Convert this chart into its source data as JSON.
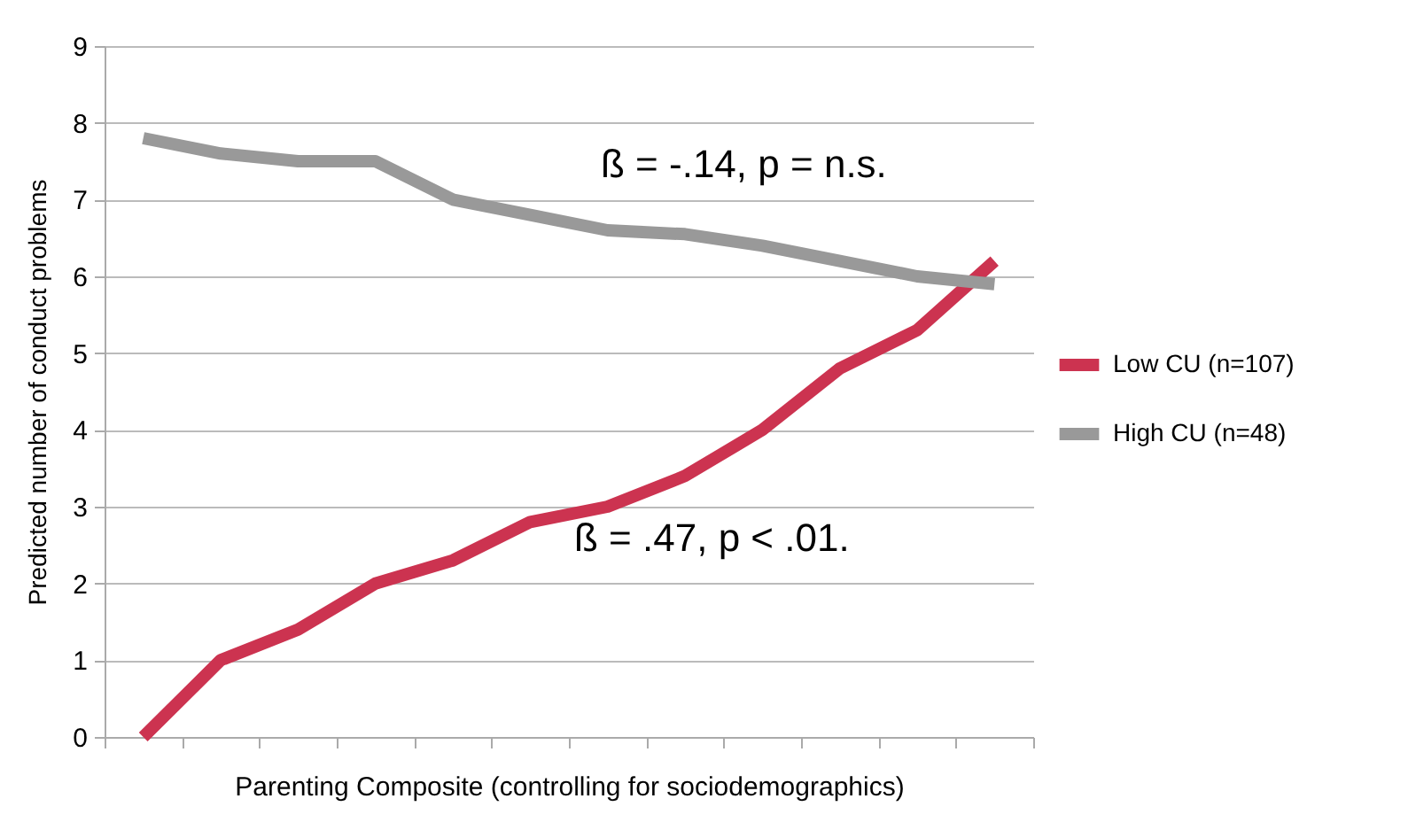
{
  "chart_data": {
    "type": "line",
    "xlabel": "Parenting Composite (controlling for sociodemographics)",
    "ylabel": "Predicted number of conduct problems",
    "categories": [
      null,
      null,
      null,
      null,
      null,
      null,
      null,
      null,
      null,
      null,
      null,
      null
    ],
    "series": [
      {
        "name": "Low CU (n=107)",
        "color": "#cc3350",
        "values": [
          0,
          1,
          1.4,
          2,
          2.3,
          2.8,
          3,
          3.4,
          4,
          4.8,
          5.3,
          6.2
        ]
      },
      {
        "name": "High CU (n=48)",
        "color": "#999999",
        "values": [
          7.8,
          7.6,
          7.5,
          7.5,
          7,
          6.8,
          6.6,
          6.55,
          6.4,
          6.2,
          6,
          5.9
        ]
      }
    ],
    "ylim": [
      0,
      9
    ],
    "yticks": [
      0,
      1,
      2,
      3,
      4,
      5,
      6,
      7,
      8,
      9
    ],
    "grid": "y",
    "legend": "right",
    "tick_labels": "y",
    "marker": "none",
    "line_style": "solid",
    "annotations": [
      "ß = -.14, p = n.s.",
      "ß = .47, p < .01."
    ]
  }
}
